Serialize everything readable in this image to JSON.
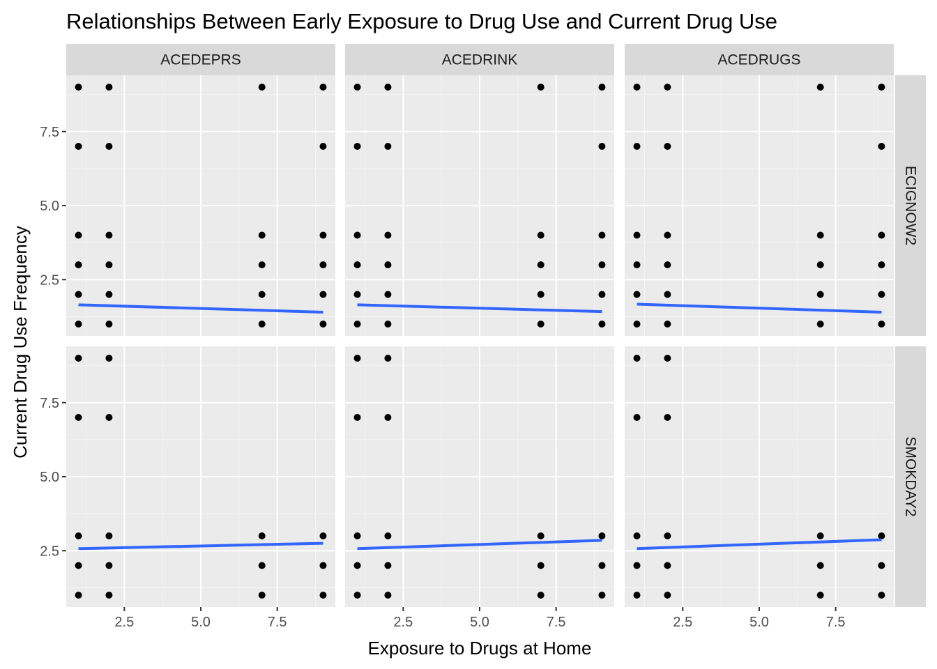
{
  "chart_data": {
    "type": "scatter",
    "title": "Relationships Between Early Exposure to Drug Use and Current Drug Use",
    "xlabel": "Exposure to Drugs at Home",
    "ylabel": "Current Drug Use Frequency",
    "xlim": [
      0.6,
      9.4
    ],
    "ylim": [
      0.6,
      9.4
    ],
    "x_ticks": [
      2.5,
      5.0,
      7.5
    ],
    "x_tick_labels": [
      "2.5",
      "5.0",
      "7.5"
    ],
    "y_ticks": [
      2.5,
      5.0,
      7.5
    ],
    "y_tick_labels": [
      "2.5",
      "5.0",
      "7.5"
    ],
    "grid": true,
    "legend": "none",
    "facet_columns": [
      "ACEDEPRS",
      "ACEDRINK",
      "ACEDRUGS"
    ],
    "facet_rows": [
      "ECIGNOW2",
      "SMOKDAY2"
    ],
    "colors": {
      "panel_background": "#EBEBEB",
      "strip_background": "#D9D9D9",
      "grid_major": "#FFFFFF",
      "grid_minor": "#F4F4F4",
      "point": "#000000",
      "fit_line": "#3366FF"
    },
    "panels": [
      {
        "column": "ACEDEPRS",
        "row": "ECIGNOW2",
        "points": [
          [
            1,
            9
          ],
          [
            2,
            9
          ],
          [
            7,
            9
          ],
          [
            9,
            9
          ],
          [
            1,
            7
          ],
          [
            2,
            7
          ],
          [
            9,
            7
          ],
          [
            1,
            4
          ],
          [
            2,
            4
          ],
          [
            7,
            4
          ],
          [
            9,
            4
          ],
          [
            1,
            3
          ],
          [
            2,
            3
          ],
          [
            7,
            3
          ],
          [
            9,
            3
          ],
          [
            1,
            2
          ],
          [
            2,
            2
          ],
          [
            7,
            2
          ],
          [
            9,
            2
          ],
          [
            1,
            1
          ],
          [
            2,
            1
          ],
          [
            7,
            1
          ],
          [
            9,
            1
          ]
        ],
        "fit": [
          [
            1,
            1.65
          ],
          [
            9,
            1.4
          ]
        ]
      },
      {
        "column": "ACEDRINK",
        "row": "ECIGNOW2",
        "points": [
          [
            1,
            9
          ],
          [
            2,
            9
          ],
          [
            7,
            9
          ],
          [
            9,
            9
          ],
          [
            1,
            7
          ],
          [
            2,
            7
          ],
          [
            9,
            7
          ],
          [
            1,
            4
          ],
          [
            2,
            4
          ],
          [
            7,
            4
          ],
          [
            9,
            4
          ],
          [
            1,
            3
          ],
          [
            2,
            3
          ],
          [
            7,
            3
          ],
          [
            9,
            3
          ],
          [
            1,
            2
          ],
          [
            2,
            2
          ],
          [
            7,
            2
          ],
          [
            9,
            2
          ],
          [
            1,
            1
          ],
          [
            2,
            1
          ],
          [
            7,
            1
          ],
          [
            9,
            1
          ]
        ],
        "fit": [
          [
            1,
            1.65
          ],
          [
            9,
            1.42
          ]
        ]
      },
      {
        "column": "ACEDRUGS",
        "row": "ECIGNOW2",
        "points": [
          [
            1,
            9
          ],
          [
            2,
            9
          ],
          [
            7,
            9
          ],
          [
            9,
            9
          ],
          [
            1,
            7
          ],
          [
            2,
            7
          ],
          [
            9,
            7
          ],
          [
            1,
            4
          ],
          [
            2,
            4
          ],
          [
            7,
            4
          ],
          [
            9,
            4
          ],
          [
            1,
            3
          ],
          [
            2,
            3
          ],
          [
            7,
            3
          ],
          [
            9,
            3
          ],
          [
            1,
            2
          ],
          [
            2,
            2
          ],
          [
            7,
            2
          ],
          [
            9,
            2
          ],
          [
            1,
            1
          ],
          [
            2,
            1
          ],
          [
            7,
            1
          ],
          [
            9,
            1
          ]
        ],
        "fit": [
          [
            1,
            1.67
          ],
          [
            9,
            1.4
          ]
        ]
      },
      {
        "column": "ACEDEPRS",
        "row": "SMOKDAY2",
        "points": [
          [
            1,
            9
          ],
          [
            2,
            9
          ],
          [
            1,
            7
          ],
          [
            2,
            7
          ],
          [
            1,
            3
          ],
          [
            2,
            3
          ],
          [
            7,
            3
          ],
          [
            9,
            3
          ],
          [
            1,
            2
          ],
          [
            2,
            2
          ],
          [
            7,
            2
          ],
          [
            9,
            2
          ],
          [
            1,
            1
          ],
          [
            2,
            1
          ],
          [
            7,
            1
          ],
          [
            9,
            1
          ]
        ],
        "fit": [
          [
            1,
            2.57
          ],
          [
            9,
            2.75
          ]
        ]
      },
      {
        "column": "ACEDRINK",
        "row": "SMOKDAY2",
        "points": [
          [
            1,
            9
          ],
          [
            2,
            9
          ],
          [
            1,
            7
          ],
          [
            2,
            7
          ],
          [
            1,
            3
          ],
          [
            2,
            3
          ],
          [
            7,
            3
          ],
          [
            9,
            3
          ],
          [
            1,
            2
          ],
          [
            2,
            2
          ],
          [
            7,
            2
          ],
          [
            9,
            2
          ],
          [
            1,
            1
          ],
          [
            2,
            1
          ],
          [
            7,
            1
          ],
          [
            9,
            1
          ]
        ],
        "fit": [
          [
            1,
            2.57
          ],
          [
            9,
            2.85
          ]
        ]
      },
      {
        "column": "ACEDRUGS",
        "row": "SMOKDAY2",
        "points": [
          [
            1,
            9
          ],
          [
            2,
            9
          ],
          [
            1,
            7
          ],
          [
            2,
            7
          ],
          [
            1,
            3
          ],
          [
            2,
            3
          ],
          [
            7,
            3
          ],
          [
            9,
            3
          ],
          [
            1,
            2
          ],
          [
            2,
            2
          ],
          [
            7,
            2
          ],
          [
            9,
            2
          ],
          [
            1,
            1
          ],
          [
            2,
            1
          ],
          [
            7,
            1
          ],
          [
            9,
            1
          ]
        ],
        "fit": [
          [
            1,
            2.57
          ],
          [
            9,
            2.87
          ]
        ]
      }
    ]
  }
}
